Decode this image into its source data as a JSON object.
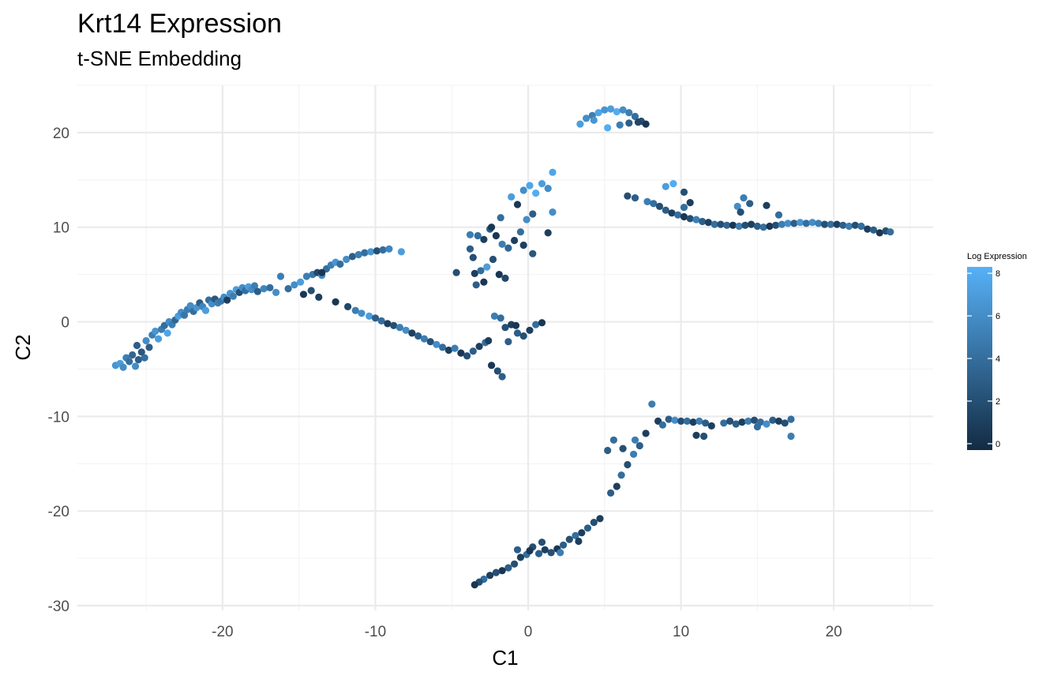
{
  "chart_data": {
    "type": "scatter",
    "title": "Krt14 Expression",
    "subtitle": "t-SNE Embedding",
    "xlabel": "C1",
    "ylabel": "C2",
    "xlim": [
      -29.5,
      26.5
    ],
    "ylim": [
      -30.5,
      25
    ],
    "x_ticks": [
      -20,
      -10,
      0,
      10,
      20
    ],
    "x_tick_labels": [
      "-20",
      "-10",
      "0",
      "10",
      "20"
    ],
    "y_ticks": [
      -30,
      -20,
      -10,
      0,
      10,
      20
    ],
    "y_tick_labels": [
      "-30",
      "-20",
      "-10",
      "0",
      "10",
      "20"
    ],
    "grid": true,
    "legend": {
      "title": "Log Expression",
      "position": "right",
      "range": [
        -0.3,
        8.3
      ],
      "ticks": [
        0,
        2,
        4,
        6,
        8
      ],
      "tick_labels": [
        "0",
        "2",
        "4",
        "6",
        "8"
      ],
      "low_color": "#132b43",
      "high_color": "#56b1f7"
    },
    "points": [
      [
        -27,
        -4.6,
        6.5
      ],
      [
        -26.7,
        -4.4,
        7
      ],
      [
        -26.5,
        -4.8,
        6
      ],
      [
        -26.3,
        -3.8,
        5
      ],
      [
        -26.1,
        -4.2,
        4
      ],
      [
        -25.9,
        -3.5,
        3.5
      ],
      [
        -25.7,
        -4.7,
        6
      ],
      [
        -25.5,
        -4,
        3
      ],
      [
        -25.3,
        -3.2,
        2.5
      ],
      [
        -25.6,
        -2.5,
        3
      ],
      [
        -25.1,
        -3.8,
        4
      ],
      [
        -25,
        -2,
        6
      ],
      [
        -24.8,
        -2.7,
        3
      ],
      [
        -24.6,
        -1.4,
        5
      ],
      [
        -24.4,
        -1,
        6.5
      ],
      [
        -24.2,
        -1.8,
        7
      ],
      [
        -24,
        -0.8,
        5
      ],
      [
        -23.8,
        -0.4,
        4
      ],
      [
        -23.6,
        -1.2,
        7.5
      ],
      [
        -23.5,
        0,
        6
      ],
      [
        -23.3,
        -0.3,
        5
      ],
      [
        -23.1,
        0.2,
        3.5
      ],
      [
        -22.9,
        0.6,
        7
      ],
      [
        -22.7,
        1,
        6
      ],
      [
        -22.5,
        0.7,
        4.5
      ],
      [
        -22.3,
        1.3,
        5
      ],
      [
        -22.1,
        1.7,
        6
      ],
      [
        -21.9,
        1.1,
        4
      ],
      [
        -21.7,
        1.5,
        6.5
      ],
      [
        -21.5,
        2,
        3
      ],
      [
        -21.3,
        1.6,
        5.5
      ],
      [
        -21.1,
        1.2,
        7
      ],
      [
        -20.9,
        2.3,
        4
      ],
      [
        -20.7,
        1.9,
        6
      ],
      [
        -20.5,
        2.4,
        2.5
      ],
      [
        -20.3,
        2,
        5
      ],
      [
        -20.1,
        2.2,
        4.5
      ],
      [
        -19.9,
        2.6,
        6
      ],
      [
        -19.7,
        2.3,
        1
      ],
      [
        -19.5,
        3,
        6.5
      ],
      [
        -19.3,
        2.7,
        5
      ],
      [
        -19.1,
        3.4,
        7
      ],
      [
        -18.9,
        3.1,
        2
      ],
      [
        -18.7,
        3.6,
        6
      ],
      [
        -18.5,
        3.3,
        4
      ],
      [
        -18.3,
        3.7,
        7
      ],
      [
        -18.1,
        3.4,
        6
      ],
      [
        -17.9,
        3.8,
        5
      ],
      [
        -17.7,
        3.2,
        3
      ],
      [
        -17.3,
        3.5,
        5.5
      ],
      [
        -16.9,
        3.6,
        4
      ],
      [
        -16.5,
        3.1,
        6
      ],
      [
        -16.2,
        4.8,
        5
      ],
      [
        -15.7,
        3.5,
        4
      ],
      [
        -15.3,
        3.9,
        6
      ],
      [
        -14.9,
        4.2,
        7
      ],
      [
        -14.5,
        4.8,
        5
      ],
      [
        -14.1,
        5,
        4.5
      ],
      [
        -13.8,
        5.2,
        1.5
      ],
      [
        -13.5,
        4.9,
        6
      ],
      [
        -13.2,
        5.6,
        4
      ],
      [
        -12.9,
        6,
        5
      ],
      [
        -12.6,
        6.3,
        6.5
      ],
      [
        -12.3,
        6.1,
        4
      ],
      [
        -11.9,
        6.6,
        6
      ],
      [
        -11.5,
        6.9,
        3
      ],
      [
        -11.1,
        7.1,
        5
      ],
      [
        -10.7,
        7.3,
        4
      ],
      [
        -10.3,
        7.4,
        6.5
      ],
      [
        -9.9,
        7.5,
        2
      ],
      [
        -9.5,
        7.6,
        4
      ],
      [
        -9.1,
        7.7,
        5.5
      ],
      [
        -8.3,
        7.4,
        7
      ],
      [
        -13.5,
        5.2,
        0.5
      ],
      [
        -14.2,
        3.3,
        2
      ],
      [
        -14.7,
        2.9,
        0.5
      ],
      [
        -13.7,
        2.6,
        1
      ],
      [
        -12.6,
        2.1,
        0.5
      ],
      [
        -11.8,
        1.6,
        1.5
      ],
      [
        -11.3,
        1.2,
        5
      ],
      [
        -10.9,
        0.9,
        6
      ],
      [
        -10.4,
        0.6,
        7
      ],
      [
        -10,
        0.4,
        3
      ],
      [
        -9.6,
        0.1,
        4
      ],
      [
        -9.2,
        -0.2,
        1
      ],
      [
        -8.8,
        -0.4,
        2
      ],
      [
        -8.4,
        -0.6,
        5
      ],
      [
        -8,
        -0.9,
        6
      ],
      [
        -7.6,
        -1.2,
        1
      ],
      [
        -7.2,
        -1.5,
        3
      ],
      [
        -6.8,
        -1.8,
        5
      ],
      [
        -6.4,
        -2.1,
        2
      ],
      [
        -6,
        -2.4,
        6
      ],
      [
        -5.6,
        -2.7,
        4
      ],
      [
        -5.2,
        -3,
        1
      ],
      [
        -4.8,
        -2.8,
        5
      ],
      [
        -4.4,
        -3.3,
        0.5
      ],
      [
        -4,
        -3.6,
        2
      ],
      [
        -3.6,
        -3.1,
        3
      ],
      [
        -3.2,
        -2.6,
        1
      ],
      [
        -2.8,
        -2.2,
        4
      ],
      [
        -2.4,
        -4.6,
        0.5
      ],
      [
        -2,
        -5.2,
        2
      ],
      [
        -1.7,
        -5.8,
        3
      ],
      [
        -3.5,
        5.1,
        1
      ],
      [
        -3.1,
        5.4,
        4
      ],
      [
        -2.7,
        5.8,
        7
      ],
      [
        -2.3,
        6.6,
        2
      ],
      [
        -1.9,
        5,
        0.5
      ],
      [
        -1.5,
        4.6,
        1.5
      ],
      [
        -3.4,
        3.9,
        3
      ],
      [
        -2.9,
        4.2,
        0.5
      ],
      [
        -3.8,
        9.2,
        5
      ],
      [
        -3.3,
        9.1,
        4
      ],
      [
        -2.9,
        8.7,
        1
      ],
      [
        -2.5,
        9.8,
        3
      ],
      [
        -2.1,
        9.1,
        0.5
      ],
      [
        -1.7,
        8.2,
        5
      ],
      [
        -1.3,
        7.8,
        3.5
      ],
      [
        -0.9,
        8.6,
        1
      ],
      [
        -0.5,
        9.5,
        4
      ],
      [
        -0.1,
        10.8,
        6
      ],
      [
        0.3,
        11.4,
        3
      ],
      [
        -0.7,
        12.4,
        0.5
      ],
      [
        -1.1,
        13.2,
        7
      ],
      [
        -0.3,
        13.9,
        6
      ],
      [
        0.1,
        14.4,
        7.5
      ],
      [
        0.5,
        13.6,
        8
      ],
      [
        0.9,
        14.6,
        7
      ],
      [
        1.3,
        14.1,
        6
      ],
      [
        1.6,
        15.8,
        7.5
      ],
      [
        1.6,
        11.6,
        6
      ],
      [
        1.3,
        9.4,
        1
      ],
      [
        0.3,
        7.2,
        2.5
      ],
      [
        -0.3,
        8.1,
        1
      ],
      [
        -3.6,
        6.8,
        2
      ],
      [
        -3.8,
        7.7,
        3
      ],
      [
        -1.8,
        11,
        4
      ],
      [
        -2.4,
        10,
        0.5
      ],
      [
        -4.7,
        5.2,
        2
      ],
      [
        -2.2,
        0.6,
        5
      ],
      [
        -1.8,
        0.4,
        4
      ],
      [
        -1.5,
        -0.6,
        2
      ],
      [
        -1.1,
        -0.3,
        1
      ],
      [
        -0.7,
        -1.2,
        3
      ],
      [
        -0.3,
        -1.5,
        2
      ],
      [
        0.1,
        -0.9,
        1
      ],
      [
        0.5,
        -0.3,
        4
      ],
      [
        0.9,
        -0.1,
        0.5
      ],
      [
        -2.6,
        -2,
        1
      ],
      [
        -1.3,
        -2.1,
        3
      ],
      [
        -0.8,
        -0.4,
        0.5
      ],
      [
        3.4,
        20.9,
        7
      ],
      [
        3.8,
        21.5,
        6
      ],
      [
        4.2,
        21.8,
        5
      ],
      [
        4.6,
        22.1,
        7.5
      ],
      [
        5,
        22.4,
        6.5
      ],
      [
        5.4,
        22.5,
        7
      ],
      [
        5.8,
        22.2,
        8
      ],
      [
        6.2,
        22.4,
        6
      ],
      [
        6.6,
        22.1,
        5
      ],
      [
        7,
        21.7,
        4
      ],
      [
        7.4,
        21.2,
        2
      ],
      [
        7.7,
        20.9,
        0.5
      ],
      [
        5.2,
        20.5,
        8
      ],
      [
        6,
        20.8,
        5
      ],
      [
        6.6,
        21,
        3
      ],
      [
        7.2,
        21.1,
        1.5
      ],
      [
        4.3,
        21.3,
        6.5
      ],
      [
        6.5,
        13.3,
        2
      ],
      [
        7,
        13.1,
        3
      ],
      [
        7.8,
        12.7,
        5
      ],
      [
        8.2,
        12.5,
        4
      ],
      [
        8.6,
        12.2,
        2
      ],
      [
        9,
        11.8,
        3
      ],
      [
        9.4,
        11.5,
        1
      ],
      [
        9.8,
        11.3,
        4
      ],
      [
        10.2,
        11.1,
        0.5
      ],
      [
        10.6,
        10.9,
        2
      ],
      [
        11,
        10.8,
        5
      ],
      [
        11.4,
        10.6,
        3
      ],
      [
        11.8,
        10.5,
        1
      ],
      [
        12.2,
        10.3,
        4
      ],
      [
        12.6,
        10.3,
        2
      ],
      [
        13,
        10.2,
        3.5
      ],
      [
        13.4,
        10.2,
        0.5
      ],
      [
        13.8,
        10.1,
        5
      ],
      [
        14.2,
        10.2,
        2
      ],
      [
        14.6,
        10.3,
        1
      ],
      [
        15,
        10.1,
        3
      ],
      [
        15.4,
        10,
        4
      ],
      [
        15.8,
        10.1,
        0.5
      ],
      [
        16.2,
        10.2,
        2
      ],
      [
        16.6,
        10.3,
        5
      ],
      [
        17,
        10.4,
        6
      ],
      [
        17.4,
        10.4,
        3
      ],
      [
        17.8,
        10.5,
        6.5
      ],
      [
        18.2,
        10.4,
        4
      ],
      [
        18.6,
        10.5,
        6
      ],
      [
        19,
        10.4,
        5
      ],
      [
        19.4,
        10.3,
        2
      ],
      [
        19.8,
        10.3,
        4
      ],
      [
        20.2,
        10.3,
        1
      ],
      [
        20.6,
        10.2,
        3
      ],
      [
        21,
        10.1,
        5
      ],
      [
        21.4,
        10.2,
        2
      ],
      [
        21.8,
        10.1,
        4
      ],
      [
        22.2,
        9.8,
        1
      ],
      [
        22.6,
        9.7,
        3
      ],
      [
        23,
        9.4,
        0.5
      ],
      [
        23.4,
        9.6,
        2
      ],
      [
        23.7,
        9.5,
        4
      ],
      [
        9,
        14.3,
        7
      ],
      [
        9.5,
        14.6,
        8
      ],
      [
        10.2,
        13.7,
        2
      ],
      [
        10.6,
        12.6,
        1
      ],
      [
        10.2,
        12.1,
        4
      ],
      [
        13.7,
        12.2,
        6
      ],
      [
        14.1,
        13.1,
        5
      ],
      [
        14.5,
        12.5,
        3
      ],
      [
        13.9,
        11.6,
        2
      ],
      [
        15.6,
        12.3,
        1
      ],
      [
        16.4,
        11.3,
        4
      ],
      [
        8.1,
        -8.7,
        5
      ],
      [
        8.5,
        -10.5,
        1
      ],
      [
        8.8,
        -10.9,
        4
      ],
      [
        9.2,
        -10.3,
        3
      ],
      [
        9.6,
        -10.4,
        6
      ],
      [
        10,
        -10.5,
        2
      ],
      [
        10.4,
        -10.5,
        4
      ],
      [
        10.8,
        -10.6,
        1
      ],
      [
        11.2,
        -10.5,
        5
      ],
      [
        11.6,
        -10.7,
        3
      ],
      [
        12,
        -11,
        1
      ],
      [
        12.8,
        -10.7,
        4
      ],
      [
        13.2,
        -10.5,
        2
      ],
      [
        13.6,
        -10.8,
        3
      ],
      [
        14,
        -10.6,
        1
      ],
      [
        14.4,
        -10.5,
        5
      ],
      [
        14.8,
        -10.4,
        2
      ],
      [
        15.2,
        -10.6,
        4
      ],
      [
        15.6,
        -10.8,
        6
      ],
      [
        16,
        -10.4,
        3
      ],
      [
        16.4,
        -10.5,
        1
      ],
      [
        16.8,
        -10.7,
        2
      ],
      [
        17.2,
        -10.3,
        4
      ],
      [
        7.7,
        -11.8,
        1
      ],
      [
        7.3,
        -13.1,
        3
      ],
      [
        6.9,
        -14,
        5
      ],
      [
        6.5,
        -15.1,
        2
      ],
      [
        6.1,
        -16.2,
        4
      ],
      [
        5.8,
        -17.4,
        1
      ],
      [
        5.4,
        -18.1,
        3
      ],
      [
        7,
        -12.5,
        5
      ],
      [
        6.2,
        -13.4,
        2
      ],
      [
        5.6,
        -12.5,
        4
      ],
      [
        5.2,
        -13.6,
        3
      ],
      [
        11,
        -12,
        1
      ],
      [
        11.5,
        -12.1,
        2
      ],
      [
        15,
        -11.1,
        4
      ],
      [
        17.2,
        -12.1,
        5
      ],
      [
        4.7,
        -20.8,
        1
      ],
      [
        4.3,
        -21.2,
        2
      ],
      [
        3.9,
        -21.8,
        3
      ],
      [
        3.5,
        -22.3,
        1
      ],
      [
        3.1,
        -22.6,
        4
      ],
      [
        2.7,
        -23,
        2
      ],
      [
        2.3,
        -23.6,
        3
      ],
      [
        1.9,
        -24,
        0.5
      ],
      [
        1.5,
        -24.4,
        2
      ],
      [
        1.1,
        -24.1,
        1
      ],
      [
        0.7,
        -24.5,
        3
      ],
      [
        0.3,
        -23.8,
        2
      ],
      [
        -0.1,
        -24.6,
        4
      ],
      [
        -0.5,
        -24.9,
        1
      ],
      [
        -0.9,
        -25.6,
        2
      ],
      [
        -1.3,
        -26,
        3
      ],
      [
        -1.7,
        -26.3,
        0.5
      ],
      [
        -2.1,
        -26.5,
        2
      ],
      [
        -2.5,
        -26.8,
        1
      ],
      [
        -2.9,
        -27.2,
        4
      ],
      [
        -3.2,
        -27.5,
        2
      ],
      [
        -3.5,
        -27.8,
        0.5
      ],
      [
        3.3,
        -23.2,
        1
      ],
      [
        2.1,
        -24.4,
        5
      ],
      [
        0.9,
        -23.3,
        2
      ],
      [
        0.1,
        -24.2,
        0.5
      ],
      [
        -0.7,
        -24.1,
        3
      ]
    ]
  }
}
